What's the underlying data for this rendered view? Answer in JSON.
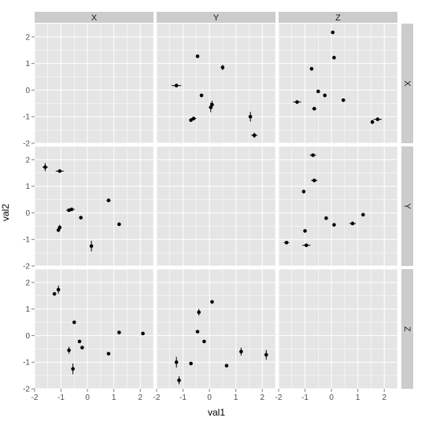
{
  "chart_data": {
    "type": "scatter",
    "subtype": "faceted-scatter-with-errorbars",
    "xlabel": "val1",
    "ylabel": "val2",
    "xlim": [
      -2,
      2.5
    ],
    "ylim": [
      -2,
      2.5
    ],
    "x_ticks": [
      "-2",
      "-1",
      "0",
      "1",
      "2"
    ],
    "y_ticks": [
      "-2",
      "-1",
      "0",
      "1",
      "2"
    ],
    "column_facets": [
      "X",
      "Y",
      "Z"
    ],
    "row_facets": [
      "X",
      "Y",
      "Z"
    ],
    "grid": true,
    "panel_background": "#e5e5e5",
    "strip_background": "#cccccc",
    "point_color": "#000000",
    "panels": [
      {
        "row": "X",
        "col": "X",
        "points": []
      },
      {
        "row": "X",
        "col": "Y",
        "points": [
          {
            "x": -1.25,
            "y": 0.17,
            "xerr": 0.18,
            "yerr": 0.05
          },
          {
            "x": -0.45,
            "y": 1.27,
            "xerr": 0.0,
            "yerr": 0.0
          },
          {
            "x": -0.7,
            "y": -1.13,
            "xerr": 0.06,
            "yerr": 0.06
          },
          {
            "x": -0.6,
            "y": -1.07,
            "xerr": 0.1,
            "yerr": 0.0
          },
          {
            "x": -0.3,
            "y": -0.2,
            "xerr": 0.0,
            "yerr": 0.0
          },
          {
            "x": 0.05,
            "y": -0.65,
            "xerr": 0.0,
            "yerr": 0.18
          },
          {
            "x": 0.1,
            "y": -0.55,
            "xerr": 0.0,
            "yerr": 0.15
          },
          {
            "x": 0.5,
            "y": 0.85,
            "xerr": 0.0,
            "yerr": 0.1
          },
          {
            "x": 1.55,
            "y": -1.0,
            "xerr": 0.0,
            "yerr": 0.18
          },
          {
            "x": 1.7,
            "y": -1.7,
            "xerr": 0.12,
            "yerr": 0.1
          }
        ]
      },
      {
        "row": "X",
        "col": "Z",
        "points": [
          {
            "x": 0.05,
            "y": 2.17,
            "xerr": 0.0,
            "yerr": 0.0
          },
          {
            "x": 0.1,
            "y": 1.22,
            "xerr": 0.0,
            "yerr": 0.0
          },
          {
            "x": -0.75,
            "y": 0.8,
            "xerr": 0.0,
            "yerr": 0.0
          },
          {
            "x": -0.5,
            "y": -0.05,
            "xerr": 0.0,
            "yerr": 0.0
          },
          {
            "x": -0.25,
            "y": -0.2,
            "xerr": 0.0,
            "yerr": 0.0
          },
          {
            "x": 0.45,
            "y": -0.38,
            "xerr": 0.0,
            "yerr": 0.0
          },
          {
            "x": -1.3,
            "y": -0.45,
            "xerr": 0.15,
            "yerr": 0.0
          },
          {
            "x": -0.65,
            "y": -0.7,
            "xerr": 0.08,
            "yerr": 0.0
          },
          {
            "x": 1.55,
            "y": -1.2,
            "xerr": 0.0,
            "yerr": 0.08
          },
          {
            "x": 1.75,
            "y": -1.1,
            "xerr": 0.15,
            "yerr": 0.0
          }
        ]
      },
      {
        "row": "Y",
        "col": "X",
        "points": [
          {
            "x": -1.6,
            "y": 1.72,
            "xerr": 0.1,
            "yerr": 0.15
          },
          {
            "x": -1.05,
            "y": 1.57,
            "xerr": 0.15,
            "yerr": 0.0
          },
          {
            "x": -0.7,
            "y": 0.1,
            "xerr": 0.1,
            "yerr": 0.0
          },
          {
            "x": -0.6,
            "y": 0.13,
            "xerr": 0.12,
            "yerr": 0.0
          },
          {
            "x": -0.25,
            "y": -0.18,
            "xerr": 0.0,
            "yerr": 0.0
          },
          {
            "x": 0.8,
            "y": 0.47,
            "xerr": 0.08,
            "yerr": 0.0
          },
          {
            "x": 1.2,
            "y": -0.43,
            "xerr": 0.0,
            "yerr": 0.0
          },
          {
            "x": -1.1,
            "y": -0.65,
            "xerr": 0.05,
            "yerr": 0.0
          },
          {
            "x": -1.05,
            "y": -0.55,
            "xerr": 0.0,
            "yerr": 0.1
          },
          {
            "x": 0.15,
            "y": -1.25,
            "xerr": 0.0,
            "yerr": 0.2
          }
        ]
      },
      {
        "row": "Y",
        "col": "Y",
        "points": []
      },
      {
        "row": "Y",
        "col": "Z",
        "points": [
          {
            "x": -0.7,
            "y": 2.17,
            "xerr": 0.12,
            "yerr": 0.0
          },
          {
            "x": -1.05,
            "y": 0.8,
            "xerr": 0.0,
            "yerr": 0.0
          },
          {
            "x": -0.65,
            "y": 1.22,
            "xerr": 0.12,
            "yerr": 0.0
          },
          {
            "x": -0.2,
            "y": -0.2,
            "xerr": 0.0,
            "yerr": 0.0
          },
          {
            "x": 0.1,
            "y": -0.45,
            "xerr": 0.0,
            "yerr": 0.0
          },
          {
            "x": 0.8,
            "y": -0.4,
            "xerr": 0.12,
            "yerr": 0.0
          },
          {
            "x": 1.2,
            "y": -0.07,
            "xerr": 0.0,
            "yerr": 0.05
          },
          {
            "x": -1.0,
            "y": -0.68,
            "xerr": 0.0,
            "yerr": 0.0
          },
          {
            "x": -1.7,
            "y": -1.12,
            "xerr": 0.1,
            "yerr": 0.0
          },
          {
            "x": -0.95,
            "y": -1.22,
            "xerr": 0.15,
            "yerr": 0.0
          }
        ]
      },
      {
        "row": "Z",
        "col": "X",
        "points": [
          {
            "x": -1.25,
            "y": 1.57,
            "xerr": 0.0,
            "yerr": 0.0
          },
          {
            "x": -1.1,
            "y": 1.73,
            "xerr": 0.0,
            "yerr": 0.15
          },
          {
            "x": -0.5,
            "y": 0.5,
            "xerr": 0.0,
            "yerr": 0.0
          },
          {
            "x": -0.3,
            "y": -0.22,
            "xerr": 0.0,
            "yerr": 0.0
          },
          {
            "x": -0.2,
            "y": -0.45,
            "xerr": 0.0,
            "yerr": 0.0
          },
          {
            "x": -0.7,
            "y": -0.55,
            "xerr": 0.0,
            "yerr": 0.13
          },
          {
            "x": -0.55,
            "y": -1.25,
            "xerr": 0.0,
            "yerr": 0.2
          },
          {
            "x": 1.2,
            "y": 0.12,
            "xerr": 0.0,
            "yerr": 0.0
          },
          {
            "x": 0.8,
            "y": -0.68,
            "xerr": 0.0,
            "yerr": 0.0
          },
          {
            "x": 2.1,
            "y": 0.08,
            "xerr": 0.0,
            "yerr": 0.0
          }
        ]
      },
      {
        "row": "Z",
        "col": "Y",
        "points": [
          {
            "x": 0.1,
            "y": 1.27,
            "xerr": 0.0,
            "yerr": 0.0
          },
          {
            "x": -0.4,
            "y": 0.88,
            "xerr": 0.0,
            "yerr": 0.12
          },
          {
            "x": -0.45,
            "y": 0.15,
            "xerr": 0.0,
            "yerr": 0.0
          },
          {
            "x": -0.2,
            "y": -0.22,
            "xerr": 0.0,
            "yerr": 0.0
          },
          {
            "x": -0.7,
            "y": -1.05,
            "xerr": 0.06,
            "yerr": 0.0
          },
          {
            "x": -1.25,
            "y": -1.0,
            "xerr": 0.0,
            "yerr": 0.2
          },
          {
            "x": -1.15,
            "y": -1.68,
            "xerr": 0.0,
            "yerr": 0.15
          },
          {
            "x": 0.65,
            "y": -1.13,
            "xerr": 0.0,
            "yerr": 0.0
          },
          {
            "x": 1.2,
            "y": -0.6,
            "xerr": 0.0,
            "yerr": 0.15
          },
          {
            "x": 2.15,
            "y": -0.72,
            "xerr": 0.0,
            "yerr": 0.18
          }
        ]
      },
      {
        "row": "Z",
        "col": "Z",
        "points": []
      }
    ]
  }
}
